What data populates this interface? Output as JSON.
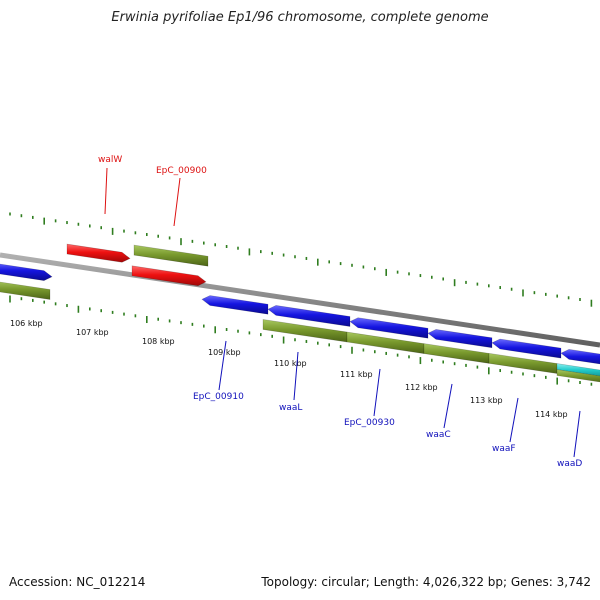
{
  "title": "Erwinia pyrifoliae Ep1/96 chromosome, complete genome",
  "footer": {
    "accession": "Accession: NC_012214",
    "summary": "Topology: circular; Length: 4,026,322 bp; Genes: 3,742"
  },
  "colors": {
    "backbone": "#8c8c8c",
    "ticks": "#2f7d1f",
    "forward_gene": "#ee1111",
    "reverse_gene": "#1515e0",
    "cds_olive": "#7a9a2e",
    "rna_cyan": "#22cccc",
    "label_top": "#dd1111",
    "label_bottom": "#1111bb"
  },
  "ruler_labels": [
    "106 kbp",
    "107 kbp",
    "108 kbp",
    "109 kbp",
    "110 kbp",
    "111 kbp",
    "112 kbp",
    "113 kbp",
    "114 kbp"
  ],
  "gene_labels_top": [
    "walW",
    "EpC_00900"
  ],
  "gene_labels_bottom": [
    "EpC_00910",
    "waaL",
    "EpC_00930",
    "waaC",
    "waaF",
    "waaD"
  ]
}
